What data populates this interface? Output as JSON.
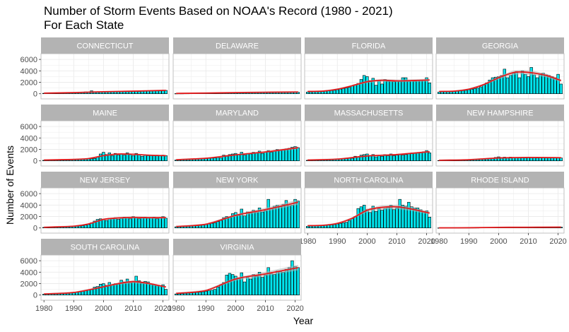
{
  "title_line1": "Number of Storm Events Based on NOAA's Record (1980 - 2021)",
  "title_line2": "For Each State",
  "chart_data": {
    "type": "bar",
    "facet": "wrap",
    "ncol": 4,
    "xlabel": "Year",
    "ylabel": "Number of Events",
    "xlim": [
      1979,
      2022
    ],
    "x_ticks": [
      1980,
      1990,
      2000,
      2010,
      2020
    ],
    "y_ticks": [
      0,
      2000,
      4000,
      6000
    ],
    "grid": true,
    "overlay": "smoothed trend line with confidence band",
    "colors": {
      "bar_fill": "#00E5EE",
      "bar_stroke": "#000000",
      "trend": "#E41A1C",
      "band": "#b3b3b3",
      "strip": "#b3b3b3",
      "grid": "#ebebeb",
      "border": "#b3b3b3"
    },
    "x": [
      1980,
      1981,
      1982,
      1983,
      1984,
      1985,
      1986,
      1987,
      1988,
      1989,
      1990,
      1991,
      1992,
      1993,
      1994,
      1995,
      1996,
      1997,
      1998,
      1999,
      2000,
      2001,
      2002,
      2003,
      2004,
      2005,
      2006,
      2007,
      2008,
      2009,
      2010,
      2011,
      2012,
      2013,
      2014,
      2015,
      2016,
      2017,
      2018,
      2019,
      2020,
      2021
    ],
    "panels": [
      {
        "name": "CONNECTICUT",
        "values": [
          80,
          90,
          100,
          110,
          120,
          130,
          140,
          150,
          160,
          180,
          200,
          220,
          250,
          270,
          330,
          270,
          510,
          340,
          300,
          310,
          380,
          300,
          330,
          330,
          400,
          350,
          430,
          380,
          420,
          390,
          450,
          480,
          400,
          440,
          500,
          520,
          470,
          540,
          560,
          600,
          640,
          580
        ],
        "trend": [
          [
            1980,
            100
          ],
          [
            1990,
            200
          ],
          [
            2000,
            350
          ],
          [
            2010,
            450
          ],
          [
            2021,
            600
          ]
        ]
      },
      {
        "name": "DELAWARE",
        "values": [
          30,
          40,
          40,
          50,
          50,
          60,
          70,
          70,
          80,
          90,
          100,
          110,
          120,
          130,
          150,
          140,
          200,
          180,
          190,
          170,
          200,
          200,
          230,
          220,
          230,
          210,
          260,
          230,
          250,
          220,
          270,
          250,
          230,
          260,
          300,
          280,
          300,
          320,
          330,
          300,
          280,
          260
        ],
        "trend": [
          [
            1980,
            60
          ],
          [
            1990,
            120
          ],
          [
            2000,
            200
          ],
          [
            2010,
            260
          ],
          [
            2021,
            300
          ]
        ]
      },
      {
        "name": "FLORIDA",
        "values": [
          300,
          300,
          350,
          380,
          400,
          420,
          450,
          500,
          550,
          600,
          700,
          800,
          900,
          1000,
          1100,
          1400,
          1600,
          1800,
          2500,
          3200,
          3000,
          2300,
          2700,
          1500,
          2300,
          1700,
          2500,
          2200,
          2200,
          2100,
          2300,
          2200,
          2800,
          2800,
          2200,
          2300,
          2200,
          2300,
          2400,
          2400,
          2800,
          1900
        ],
        "trend": [
          [
            1980,
            400
          ],
          [
            1985,
            450
          ],
          [
            1990,
            800
          ],
          [
            1995,
            1400
          ],
          [
            2000,
            2100
          ],
          [
            2005,
            2350
          ],
          [
            2010,
            2250
          ],
          [
            2015,
            2300
          ],
          [
            2021,
            2400
          ]
        ]
      },
      {
        "name": "GEORGIA",
        "values": [
          300,
          320,
          350,
          380,
          400,
          420,
          450,
          500,
          550,
          600,
          700,
          800,
          900,
          1000,
          1200,
          1600,
          1900,
          2400,
          2800,
          2900,
          3000,
          3200,
          4300,
          2800,
          3200,
          3600,
          3900,
          2800,
          4000,
          3400,
          3000,
          4600,
          3300,
          2800,
          3500,
          3600,
          3300,
          3200,
          3000,
          2800,
          3400,
          1700
        ],
        "trend": [
          [
            1980,
            400
          ],
          [
            1985,
            450
          ],
          [
            1990,
            800
          ],
          [
            1995,
            1600
          ],
          [
            2000,
            2800
          ],
          [
            2005,
            3700
          ],
          [
            2008,
            3800
          ],
          [
            2012,
            3600
          ],
          [
            2016,
            3200
          ],
          [
            2021,
            2300
          ]
        ]
      },
      {
        "name": "MAINE",
        "values": [
          100,
          110,
          120,
          130,
          140,
          150,
          160,
          170,
          180,
          190,
          200,
          220,
          240,
          260,
          300,
          320,
          350,
          420,
          700,
          1200,
          1500,
          1100,
          1400,
          900,
          1300,
          1000,
          1200,
          1000,
          1400,
          1100,
          900,
          1300,
          1100,
          800,
          1000,
          900,
          1000,
          900,
          1000,
          900,
          1000,
          900
        ],
        "trend": [
          [
            1980,
            150
          ],
          [
            1990,
            250
          ],
          [
            1995,
            400
          ],
          [
            2000,
            900
          ],
          [
            2005,
            1200
          ],
          [
            2010,
            1150
          ],
          [
            2015,
            1000
          ],
          [
            2021,
            900
          ]
        ]
      },
      {
        "name": "MARYLAND",
        "values": [
          150,
          170,
          190,
          210,
          230,
          250,
          270,
          300,
          330,
          360,
          400,
          440,
          480,
          520,
          600,
          500,
          1000,
          900,
          1100,
          1200,
          1300,
          1100,
          1500,
          1000,
          1300,
          1200,
          1500,
          1400,
          1700,
          1300,
          1500,
          1800,
          1500,
          1700,
          2000,
          1800,
          1900,
          2100,
          2200,
          2400,
          2500,
          2300
        ],
        "trend": [
          [
            1980,
            200
          ],
          [
            1990,
            450
          ],
          [
            2000,
            1050
          ],
          [
            2010,
            1550
          ],
          [
            2021,
            2300
          ]
        ]
      },
      {
        "name": "MASSACHUSETTS",
        "values": [
          100,
          110,
          120,
          130,
          150,
          170,
          190,
          210,
          230,
          250,
          280,
          310,
          340,
          380,
          450,
          450,
          800,
          700,
          1000,
          1100,
          1200,
          900,
          1100,
          700,
          1000,
          800,
          1100,
          900,
          1200,
          900,
          1000,
          1200,
          1000,
          1100,
          1300,
          1400,
          1300,
          1400,
          1500,
          1600,
          1800,
          1400
        ],
        "trend": [
          [
            1980,
            150
          ],
          [
            1990,
            300
          ],
          [
            2000,
            850
          ],
          [
            2010,
            1100
          ],
          [
            2021,
            1600
          ]
        ]
      },
      {
        "name": "NEW HAMPSHIRE",
        "values": [
          60,
          70,
          80,
          90,
          100,
          110,
          120,
          130,
          140,
          150,
          160,
          180,
          200,
          220,
          260,
          280,
          300,
          350,
          450,
          600,
          700,
          600,
          650,
          550,
          650,
          500,
          600,
          550,
          650,
          500,
          550,
          600,
          550,
          500,
          600,
          550,
          500,
          550,
          600,
          550,
          600,
          500
        ],
        "trend": [
          [
            1980,
            100
          ],
          [
            1990,
            200
          ],
          [
            2000,
            500
          ],
          [
            2010,
            600
          ],
          [
            2021,
            550
          ]
        ]
      },
      {
        "name": "NEW JERSEY",
        "values": [
          100,
          110,
          120,
          130,
          140,
          150,
          170,
          190,
          210,
          230,
          260,
          300,
          340,
          400,
          500,
          600,
          900,
          1200,
          1500,
          1600,
          1500,
          1300,
          1700,
          1600,
          1800,
          1500,
          1700,
          1900,
          1800,
          1600,
          2000,
          1900,
          1600,
          1800,
          1900,
          1700,
          1800,
          1900,
          1600,
          1800,
          2000,
          1700
        ],
        "trend": [
          [
            1980,
            120
          ],
          [
            1990,
            300
          ],
          [
            1995,
            700
          ],
          [
            2000,
            1500
          ],
          [
            2005,
            1750
          ],
          [
            2010,
            1850
          ],
          [
            2015,
            1800
          ],
          [
            2021,
            1800
          ]
        ]
      },
      {
        "name": "NEW YORK",
        "values": [
          200,
          220,
          250,
          280,
          310,
          350,
          400,
          450,
          500,
          550,
          600,
          700,
          800,
          900,
          1100,
          1300,
          1800,
          2000,
          1900,
          2500,
          2700,
          2200,
          3300,
          2100,
          2800,
          2600,
          3100,
          2700,
          3500,
          2800,
          3000,
          5000,
          3400,
          3800,
          4000,
          3800,
          4100,
          4800,
          3900,
          4000,
          5000,
          4700
        ],
        "trend": [
          [
            1980,
            250
          ],
          [
            1990,
            650
          ],
          [
            2000,
            2200
          ],
          [
            2010,
            3200
          ],
          [
            2021,
            4500
          ]
        ]
      },
      {
        "name": "NORTH CAROLINA",
        "values": [
          300,
          320,
          350,
          380,
          400,
          420,
          450,
          500,
          550,
          600,
          700,
          800,
          900,
          1000,
          1300,
          1600,
          2000,
          3400,
          3700,
          4000,
          3200,
          2700,
          3800,
          2900,
          3400,
          3100,
          3400,
          3600,
          4000,
          3200,
          3500,
          5000,
          4000,
          3800,
          4500,
          3700,
          3500,
          3500,
          3200,
          2800,
          3000,
          1900
        ],
        "trend": [
          [
            1980,
            400
          ],
          [
            1985,
            450
          ],
          [
            1990,
            800
          ],
          [
            1995,
            1700
          ],
          [
            2000,
            3100
          ],
          [
            2005,
            3600
          ],
          [
            2010,
            3700
          ],
          [
            2015,
            3300
          ],
          [
            2021,
            2600
          ]
        ]
      },
      {
        "name": "RHODE ISLAND",
        "values": [
          10,
          12,
          14,
          16,
          18,
          20,
          22,
          24,
          26,
          28,
          30,
          35,
          40,
          45,
          60,
          60,
          100,
          90,
          110,
          110,
          120,
          100,
          110,
          90,
          110,
          100,
          120,
          110,
          130,
          110,
          120,
          130,
          120,
          130,
          140,
          150,
          140,
          150,
          160,
          170,
          180,
          150
        ],
        "trend": [
          [
            1980,
            20
          ],
          [
            1990,
            40
          ],
          [
            2000,
            100
          ],
          [
            2010,
            120
          ],
          [
            2021,
            150
          ]
        ]
      },
      {
        "name": "SOUTH CAROLINA",
        "values": [
          150,
          170,
          190,
          210,
          230,
          260,
          290,
          320,
          350,
          400,
          450,
          520,
          600,
          700,
          800,
          900,
          1000,
          1400,
          1500,
          1900,
          2000,
          1700,
          2200,
          1800,
          2000,
          1900,
          2600,
          2300,
          2800,
          2100,
          2300,
          3300,
          2500,
          2100,
          2400,
          2300,
          1900,
          1800,
          1700,
          1600,
          1800,
          1000
        ],
        "trend": [
          [
            1980,
            200
          ],
          [
            1990,
            450
          ],
          [
            2000,
            1450
          ],
          [
            2005,
            2000
          ],
          [
            2010,
            2350
          ],
          [
            2015,
            2050
          ],
          [
            2021,
            1400
          ]
        ]
      },
      {
        "name": "VIRGINIA",
        "values": [
          200,
          230,
          260,
          300,
          340,
          380,
          420,
          470,
          520,
          580,
          650,
          750,
          850,
          1000,
          1400,
          1800,
          2200,
          3500,
          3800,
          3600,
          3300,
          2900,
          3900,
          2300,
          3100,
          2800,
          3600,
          3300,
          4000,
          3100,
          3500,
          4800,
          3700,
          3600,
          4200,
          4100,
          4000,
          4500,
          4800,
          6000,
          5000,
          4800
        ],
        "trend": [
          [
            1980,
            300
          ],
          [
            1990,
            800
          ],
          [
            2000,
            2800
          ],
          [
            2010,
            3700
          ],
          [
            2021,
            4800
          ]
        ]
      }
    ]
  }
}
